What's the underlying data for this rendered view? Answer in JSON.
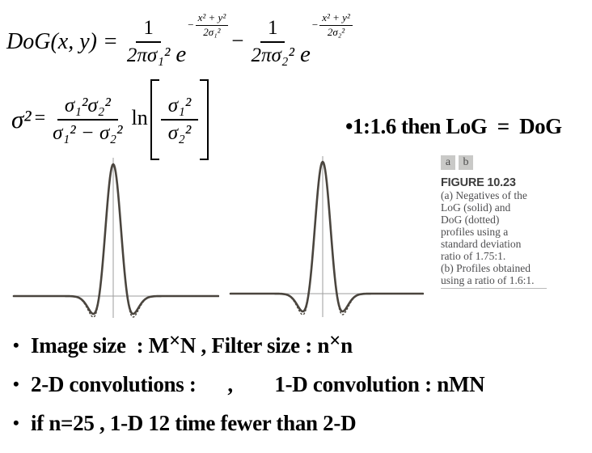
{
  "formula_dog": {
    "lhs": "DoG(x, y) =",
    "t1_num": "1",
    "t1_den": "2πσ₁²",
    "e": "e",
    "exp1_sign": "−",
    "exp1_num": "x² + y²",
    "exp1_den": "2σ₁²",
    "minus": "−",
    "t2_num": "1",
    "t2_den": "2πσ₂²",
    "exp2_sign": "−",
    "exp2_num": "x² + y²",
    "exp2_den": "2σ₂²"
  },
  "formula_sigma": {
    "lhs": "σ²",
    "eq": "=",
    "num": "σ₁²σ₂²",
    "den": "σ₁² − σ₂²",
    "ln": "ln",
    "inner_num": "σ₁²",
    "inner_den": "σ₂²"
  },
  "note": {
    "marker": "•",
    "text": "1:1.6 then LoG  =  DoG"
  },
  "figure": {
    "panel_a": "a",
    "panel_b": "b",
    "label": "FIGURE 10.23",
    "caption_lines": [
      "(a) Negatives of the",
      "LoG (solid) and",
      "DoG (dotted)",
      "profiles using a",
      "standard deviation",
      "ratio of 1.75:1.",
      "(b) Profiles obtained",
      "using a ratio of 1.6:1."
    ]
  },
  "bullets": {
    "marker": "•",
    "item1_parts": [
      "Image size  : M",
      "×",
      "N , Filter size : n",
      "×",
      "n"
    ],
    "item2": "2-D convolutions :      ,        1-D convolution : nMN",
    "item3": "if n=25 , 1-D 12 time fewer than 2-D"
  },
  "colors": {
    "curve": "#4a453e",
    "axis": "#9e9e9e",
    "text": "#000000",
    "caption_text": "#4e4e50",
    "panel_box_bg": "#c9c9c7"
  },
  "chart_data": [
    {
      "type": "line",
      "panel_label": "a",
      "title": "Negatives of the LoG (solid) and DoG (dotted) profiles, standard deviation ratio 1.75:1",
      "x_range": [
        -10.2,
        10.7
      ],
      "y_range": [
        -0.16,
        1.0
      ],
      "x_ticks": [],
      "y_ticks": [],
      "axes": {
        "horizontal_zero_line": true,
        "vertical_center_line": true,
        "frame": false
      },
      "series": [
        {
          "name": "negative LoG (solid)",
          "line_style": "solid",
          "formula": "(1 - 0.5x²)·exp(-x²/2)",
          "a": 0.5,
          "lobe_scale": 1.0,
          "peak": 1.0,
          "min": -0.135,
          "zero_crossings": [
            -1.414,
            1.414
          ]
        },
        {
          "name": "negative DoG (dotted)",
          "line_style": "dotted",
          "formula": "(1 - 0.5x²)·exp(-x²/2), negative lobes ≈18% deeper",
          "a": 0.5,
          "lobe_scale": 1.18,
          "peak": 1.0,
          "min": -0.159,
          "zero_crossings": [
            -1.414,
            1.414
          ]
        }
      ]
    },
    {
      "type": "line",
      "panel_label": "b",
      "title": "Negatives of the LoG (solid) and DoG (dotted) profiles, standard deviation ratio 1.6:1",
      "x_range": [
        -9.4,
        10.2
      ],
      "y_range": [
        -0.16,
        1.0
      ],
      "x_ticks": [],
      "y_ticks": [],
      "axes": {
        "horizontal_zero_line": true,
        "vertical_center_line": true,
        "frame": false
      },
      "series": [
        {
          "name": "negative LoG (solid)",
          "line_style": "solid",
          "formula": "(1 - 0.5x²)·exp(-x²/2)",
          "a": 0.5,
          "lobe_scale": 1.0,
          "peak": 1.0,
          "min": -0.135,
          "zero_crossings": [
            -1.414,
            1.414
          ]
        },
        {
          "name": "negative DoG (dotted)",
          "line_style": "dotted",
          "formula": "(1 - 0.5x²)·exp(-x²/2), negative lobes ≈18% deeper",
          "a": 0.5,
          "lobe_scale": 1.18,
          "peak": 1.0,
          "min": -0.159,
          "zero_crossings": [
            -1.414,
            1.414
          ]
        }
      ]
    }
  ]
}
